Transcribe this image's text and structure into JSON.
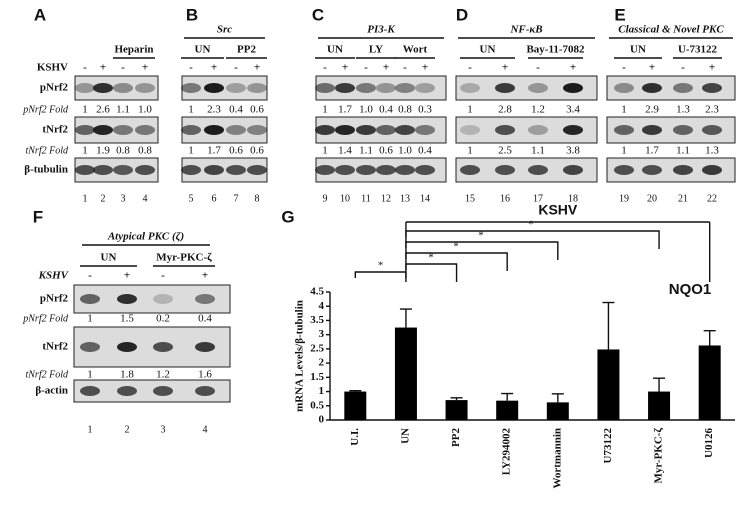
{
  "panels": [
    {
      "label": "A",
      "row_label": "KSHV",
      "groups": [
        "Heparin"
      ],
      "signs": [
        "-",
        "+",
        "-",
        "+"
      ],
      "rows": [
        "pNrf2",
        "tNrf2",
        "β-tubulin"
      ],
      "fold_labels": [
        "pNrf2 Fold",
        "tNrf2 Fold"
      ],
      "folds": [
        [
          "1",
          "2.6",
          "1.1",
          "1.0"
        ],
        [
          "1",
          "1.9",
          "0.8",
          "0.8"
        ]
      ],
      "lanes": [
        "1",
        "2",
        "3",
        "4"
      ]
    },
    {
      "label": "B",
      "title": "Src",
      "groups": [
        "UN",
        "PP2"
      ],
      "signs": [
        "-",
        "+",
        "-",
        "+"
      ],
      "folds": [
        [
          "1",
          "2.3",
          "0.4",
          "0.6"
        ],
        [
          "1",
          "1.7",
          "0.6",
          "0.6"
        ]
      ],
      "lanes": [
        "5",
        "6",
        "7",
        "8"
      ]
    },
    {
      "label": "C",
      "title": "PI3-K",
      "groups": [
        "UN",
        "LY",
        "Wort"
      ],
      "signs": [
        "-",
        "+",
        "-",
        "+",
        "-",
        "+"
      ],
      "folds": [
        [
          "1",
          "1.7",
          "1.0",
          "0.4",
          "0.8",
          "0.3"
        ],
        [
          "1",
          "1.4",
          "1.1",
          "0.6",
          "1.0",
          "0.4"
        ]
      ],
      "lanes": [
        "9",
        "10",
        "11",
        "12",
        "13",
        "14"
      ]
    },
    {
      "label": "D",
      "title": "NF-κB",
      "groups": [
        "UN",
        "Bay-11-7082"
      ],
      "signs": [
        "-",
        "+",
        "-",
        "+"
      ],
      "folds": [
        [
          "1",
          "2.8",
          "1.2",
          "3.4"
        ],
        [
          "1",
          "2.5",
          "1.1",
          "3.8"
        ]
      ],
      "lanes": [
        "15",
        "16",
        "17",
        "18"
      ]
    },
    {
      "label": "E",
      "title": "Classical & Novel PKC",
      "groups": [
        "UN",
        "U-73122"
      ],
      "signs": [
        "-",
        "+",
        "-",
        "+"
      ],
      "folds": [
        [
          "1",
          "2.9",
          "1.3",
          "2.3"
        ],
        [
          "1",
          "1.7",
          "1.1",
          "1.3"
        ]
      ],
      "lanes": [
        "19",
        "20",
        "21",
        "22"
      ]
    },
    {
      "label": "F",
      "title": "Atypical PKC (ζ)",
      "row_label": "KSHV",
      "groups": [
        "UN",
        "Myr-PKC-ζ"
      ],
      "signs": [
        "-",
        "+",
        "-",
        "+"
      ],
      "rows": [
        "pNrf2",
        "tNrf2",
        "β-actin"
      ],
      "fold_labels": [
        "pNrf2 Fold",
        "tNrf2 Fold"
      ],
      "folds": [
        [
          "1",
          "1.5",
          "0.2",
          "0.4"
        ],
        [
          "1",
          "1.8",
          "1.2",
          "1.6"
        ]
      ],
      "lanes": [
        "1",
        "2",
        "3",
        "4"
      ]
    }
  ],
  "chart_data": {
    "type": "bar",
    "label": "G",
    "annotation": "NQO1",
    "group_label": "KSHV",
    "ylabel": "mRNA Levels/β-tubulin",
    "categories": [
      "U.I.",
      "UN",
      "PP2",
      "LY294002",
      "Wortmannin",
      "U73122",
      "Myr-PKC-ζ",
      "U0126"
    ],
    "values": [
      1,
      3.25,
      0.7,
      0.68,
      0.62,
      2.48,
      1,
      2.62
    ],
    "errors": [
      0.03,
      0.65,
      0.08,
      0.25,
      0.3,
      1.65,
      0.47,
      0.52
    ],
    "significance": [
      "*",
      "*",
      "*",
      "*",
      "*"
    ],
    "color": "#000000",
    "ylim": [
      0,
      4.5
    ],
    "yticks": [
      0,
      0.5,
      1,
      1.5,
      2,
      2.5,
      3,
      3.5,
      4,
      4.5
    ]
  }
}
